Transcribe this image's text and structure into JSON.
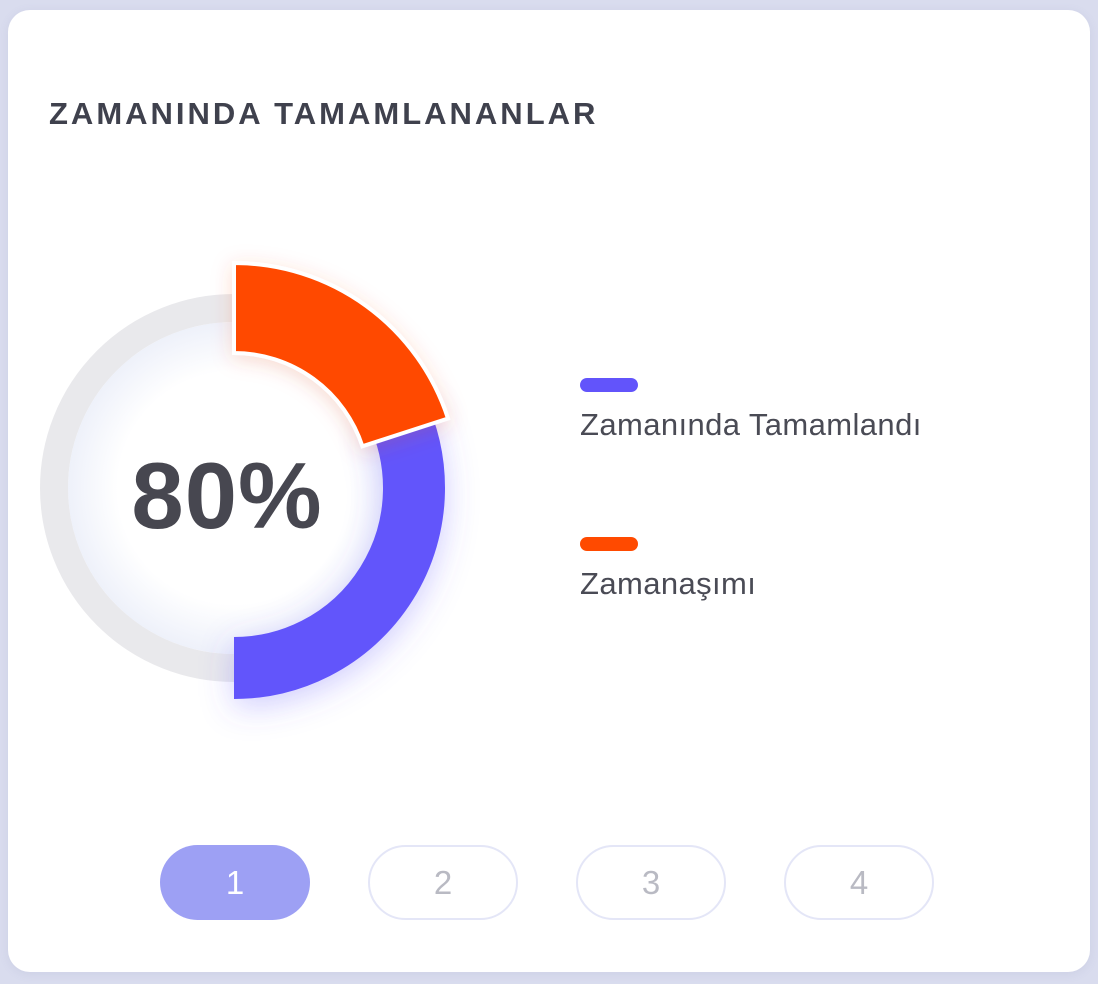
{
  "card": {
    "title": "ZAMANINDA TAMAMLANANLAR"
  },
  "chart_data": {
    "type": "pie",
    "variant": "radial-donut",
    "title": "ZAMANINDA TAMAMLANANLAR",
    "center_label": "80%",
    "center_value_pct": 80,
    "series": [
      {
        "name": "Zamanında Tamamlandı",
        "value": 80,
        "color": "#6254FB"
      },
      {
        "name": "Zamanaşımı",
        "value": 20,
        "color": "#FF4A00"
      }
    ],
    "track_color": "#E9E9EC",
    "legend_position": "right",
    "legend_entries": [
      "Zamanında Tamamlandı",
      "Zamanaşımı"
    ]
  },
  "pagination": {
    "pages": [
      {
        "label": "1",
        "active": true
      },
      {
        "label": "2",
        "active": false
      },
      {
        "label": "3",
        "active": false
      },
      {
        "label": "4",
        "active": false
      }
    ]
  },
  "colors": {
    "page_background": "#D9DCEE",
    "card_background": "#FFFFFF",
    "title_text": "#3F414D",
    "center_label_text": "#474750",
    "legend_text": "#4A4B55",
    "active_pill_background": "#9DA0F4",
    "active_pill_text": "#FFFFFF",
    "inactive_pill_border": "#E4E6F7",
    "inactive_pill_text": "#B9BAC3"
  }
}
